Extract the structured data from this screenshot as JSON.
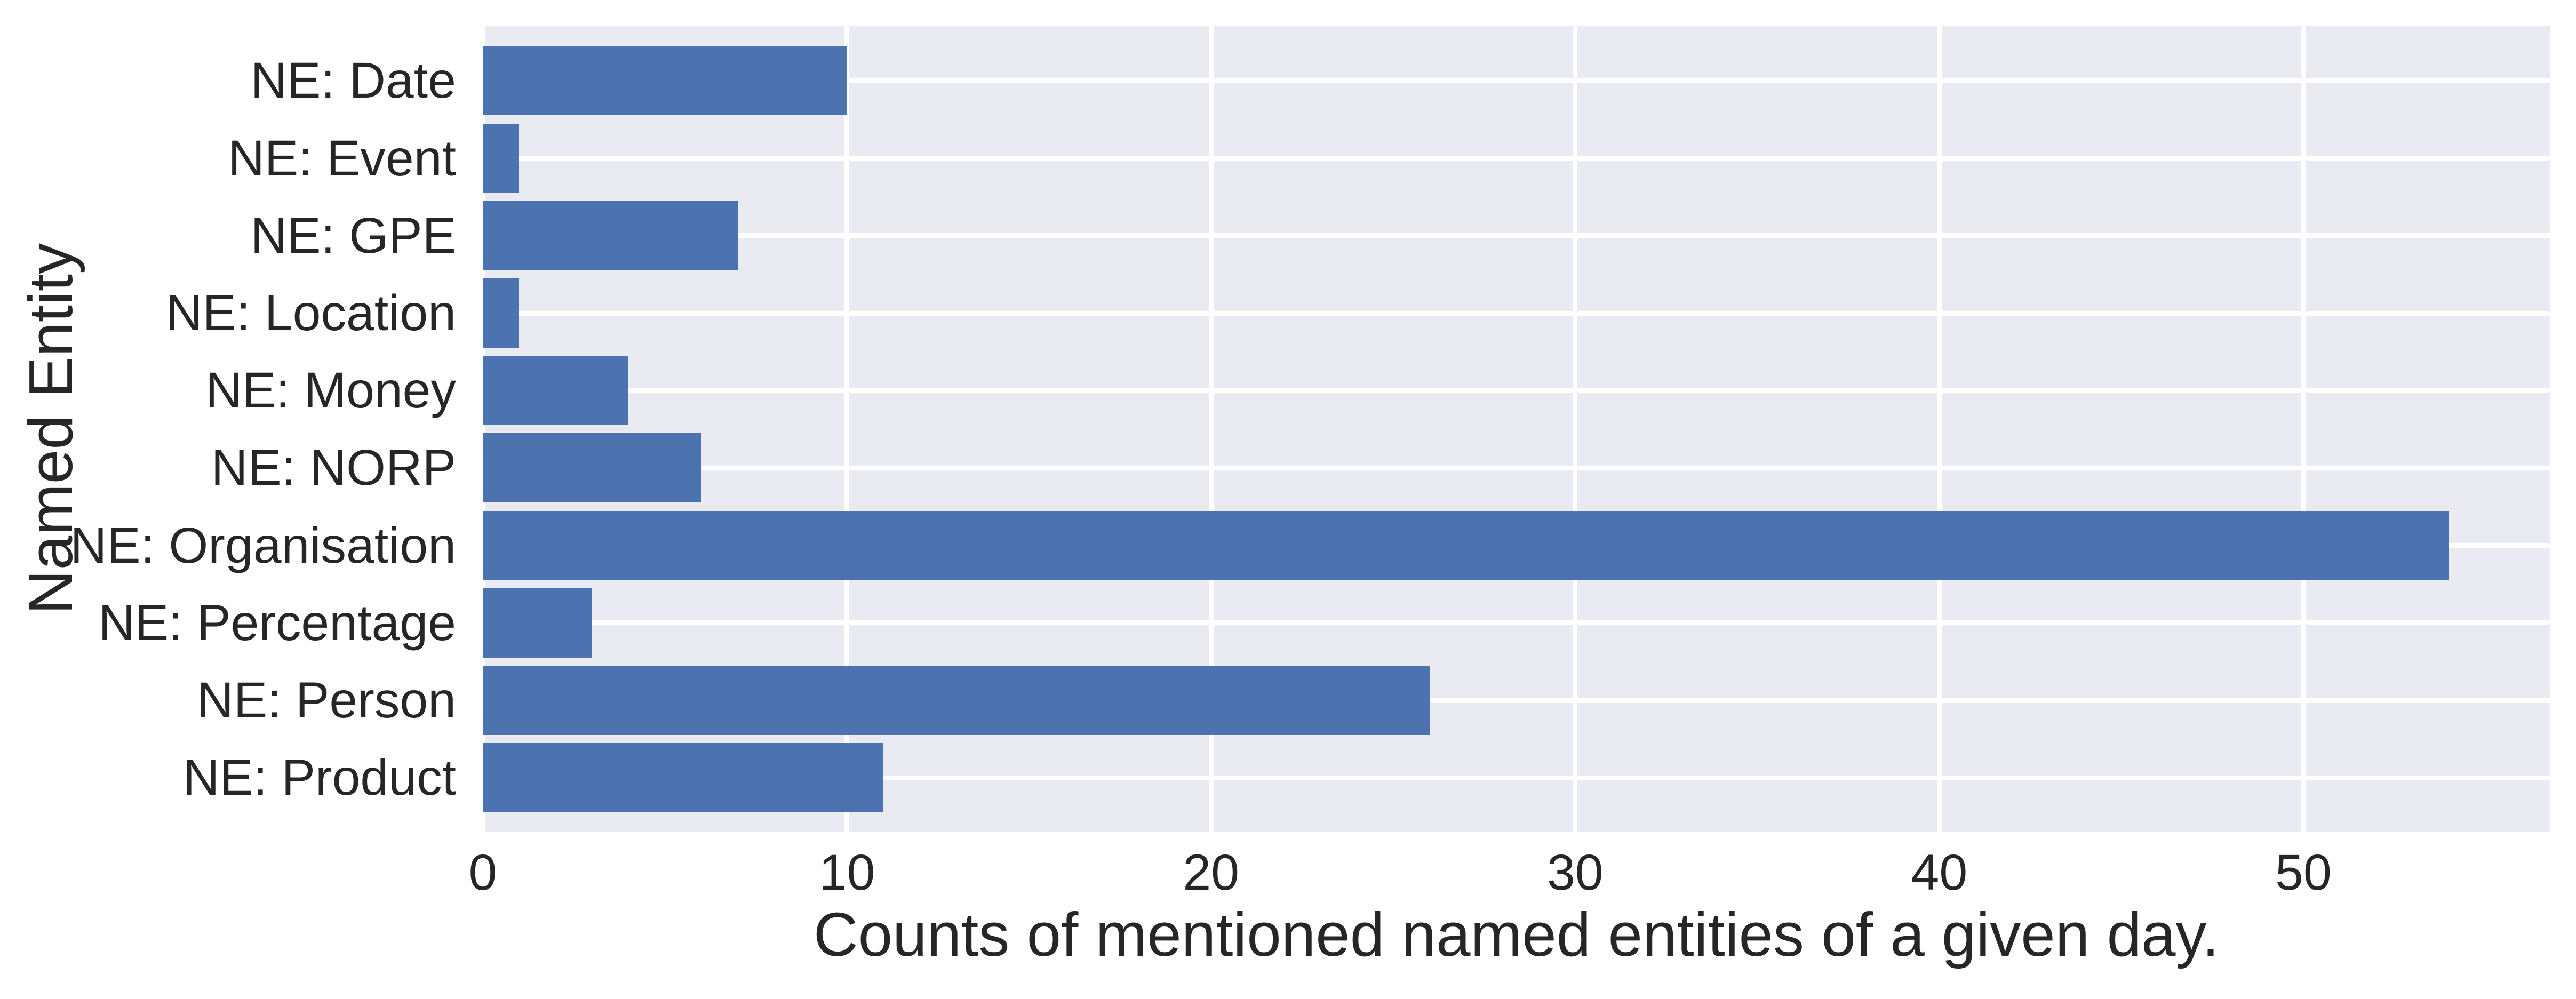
{
  "chart_data": {
    "type": "bar",
    "orientation": "horizontal",
    "title": "",
    "xlabel": "Counts of mentioned named entities of a given day.",
    "ylabel": "Named Entity",
    "categories": [
      "NE: Date",
      "NE: Event",
      "NE: GPE",
      "NE: Location",
      "NE: Money",
      "NE: NORP",
      "NE: Organisation",
      "NE: Percentage",
      "NE: Person",
      "NE: Product"
    ],
    "values": [
      10,
      1,
      7,
      1,
      4,
      6,
      54,
      3,
      26,
      11
    ],
    "xticks": [
      0,
      10,
      20,
      30,
      40,
      50
    ],
    "xlim": [
      0,
      56.8
    ],
    "grid": true,
    "legend": false,
    "colors": {
      "bar": "#4C72B0",
      "plot_background": "#EAEAF2",
      "gridline": "#FFFFFF",
      "text": "#262626",
      "figure_background": "#FFFFFF"
    }
  }
}
